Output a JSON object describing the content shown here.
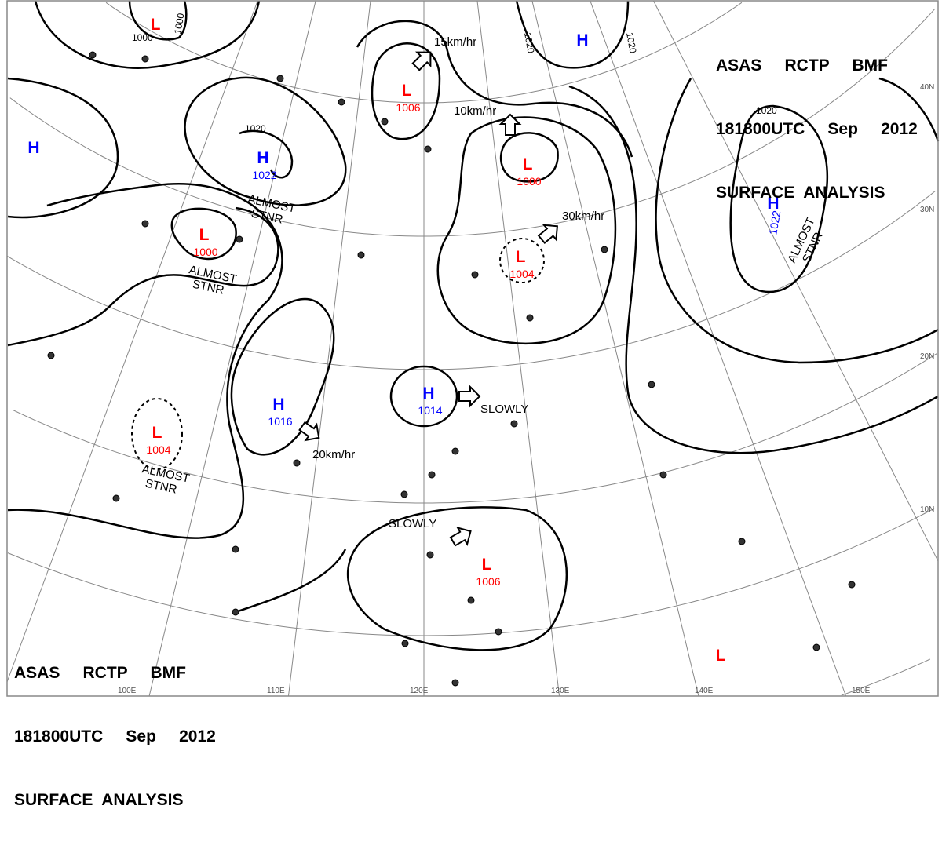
{
  "header": {
    "line1": "ASAS     RCTP     BMF",
    "line2": "181800UTC     Sep     2012",
    "line3": "SURFACE  ANALYSIS"
  },
  "colors": {
    "high": "#0000ff",
    "low": "#ff0000",
    "isobar": "#000000",
    "grid": "#888888"
  },
  "latitude_labels": [
    "10N",
    "20N",
    "30N",
    "40N"
  ],
  "longitude_labels": [
    "100E",
    "110E",
    "120E",
    "130E",
    "140E",
    "150E"
  ],
  "pressure_centers": [
    {
      "type": "L",
      "pressure": ""
    },
    {
      "type": "H",
      "pressure": ""
    },
    {
      "type": "H",
      "pressure": "1022"
    },
    {
      "type": "L",
      "pressure": "1006"
    },
    {
      "type": "L",
      "pressure": "1000"
    },
    {
      "type": "L",
      "pressure": "1000"
    },
    {
      "type": "L",
      "pressure": "1004"
    },
    {
      "type": "H",
      "pressure": ""
    },
    {
      "type": "H",
      "pressure": "1022"
    },
    {
      "type": "H",
      "pressure": "1016"
    },
    {
      "type": "H",
      "pressure": "1014"
    },
    {
      "type": "L",
      "pressure": "1004"
    },
    {
      "type": "L",
      "pressure": "1006"
    },
    {
      "type": "L",
      "pressure": ""
    }
  ],
  "motion_labels": [
    "15km/hr",
    "10km/hr",
    "30km/hr",
    "20km/hr",
    "SLOWLY",
    "SLOWLY"
  ],
  "stationary_labels": [
    "ALMOST\nSTNR",
    "ALMOST\nSTNR",
    "ALMOST\nSTNR",
    "ALMOST\nSTNR"
  ],
  "isobar_labels": [
    "1000",
    "1000",
    "1020",
    "1020",
    "1020",
    "1020"
  ]
}
